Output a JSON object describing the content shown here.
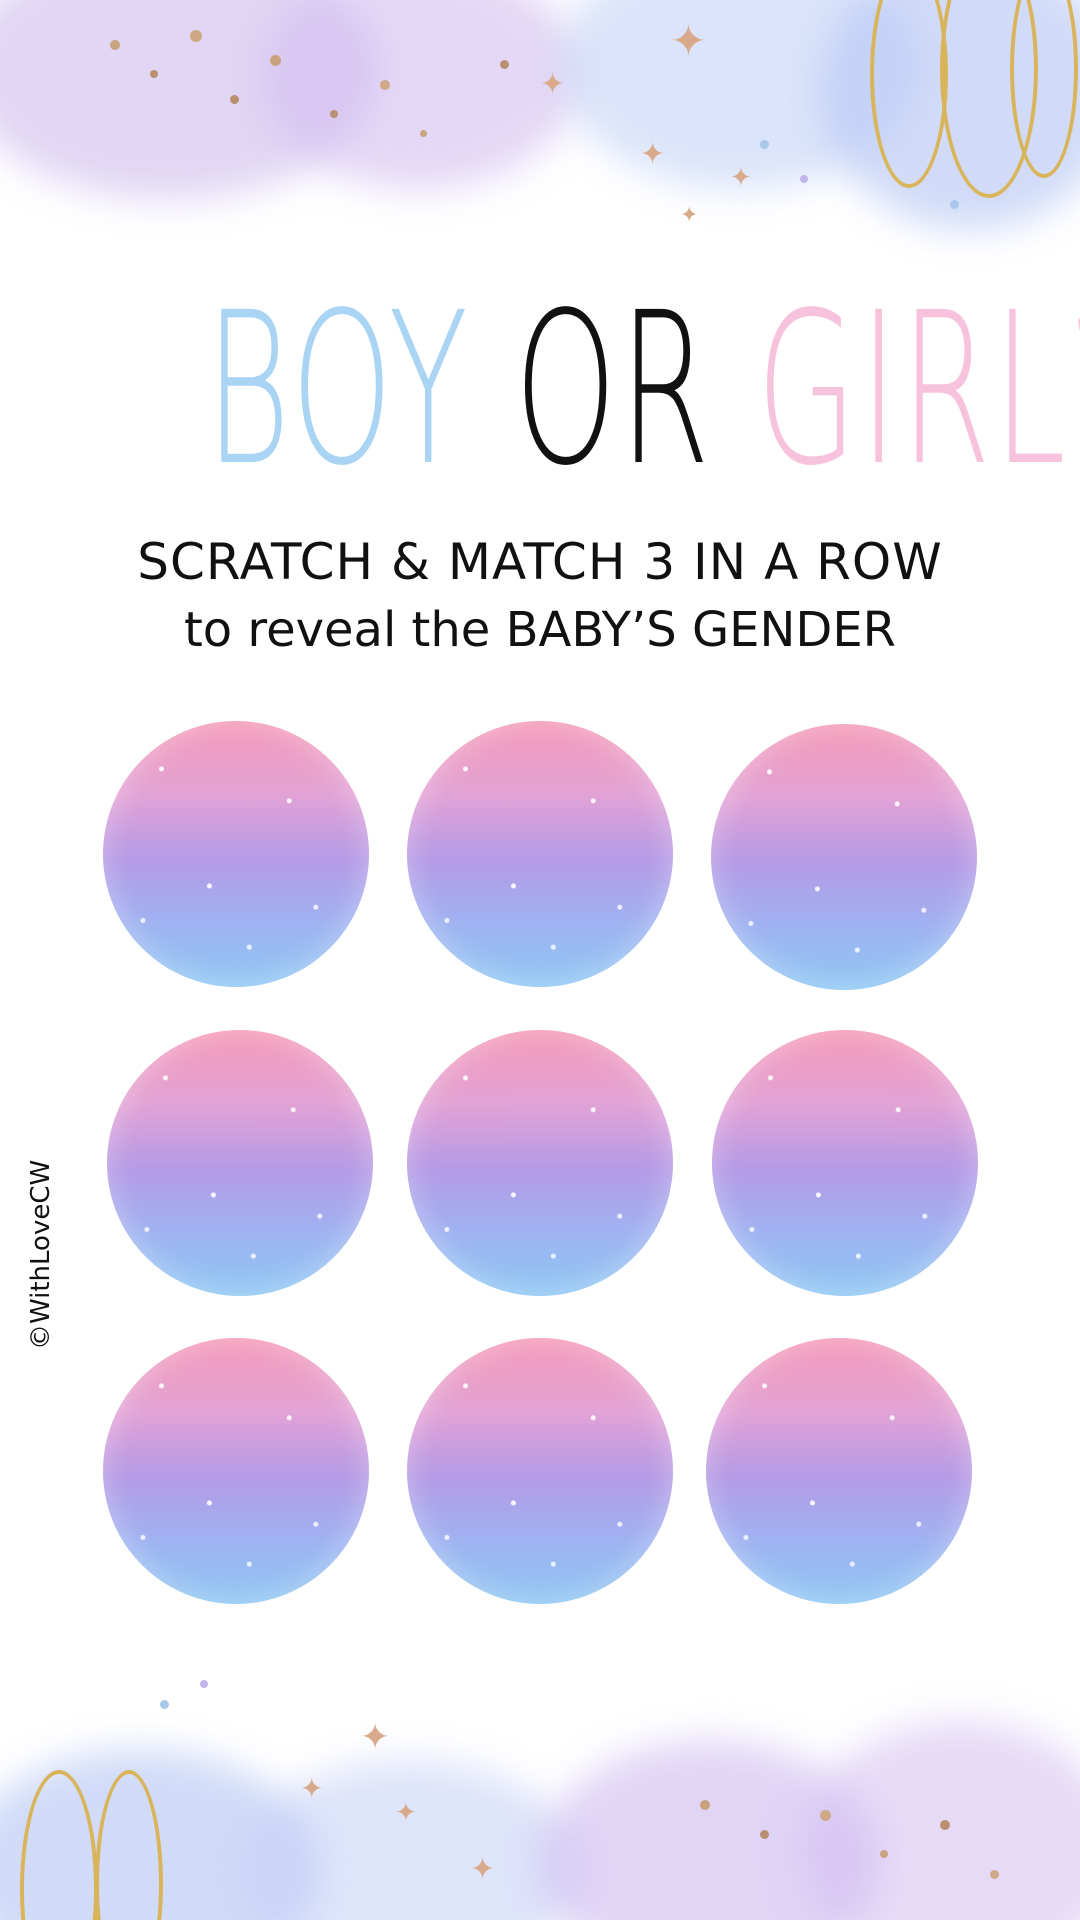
{
  "title": {
    "boy": "BOY",
    "or": "OR",
    "girl": "GIRL?"
  },
  "subtitle": {
    "line1": "SCRATCH & MATCH 3 IN A ROW",
    "line2": "to reveal the BABY’S GENDER"
  },
  "credit": "©WithLoveCW",
  "scratch_spots_count": 9,
  "colors": {
    "boy": "#a9d4f3",
    "or": "#111111",
    "girl": "#f7c3dc",
    "scratch_gradient": [
      "#f49ab7",
      "#b59ae6",
      "#8ec7f3"
    ]
  }
}
